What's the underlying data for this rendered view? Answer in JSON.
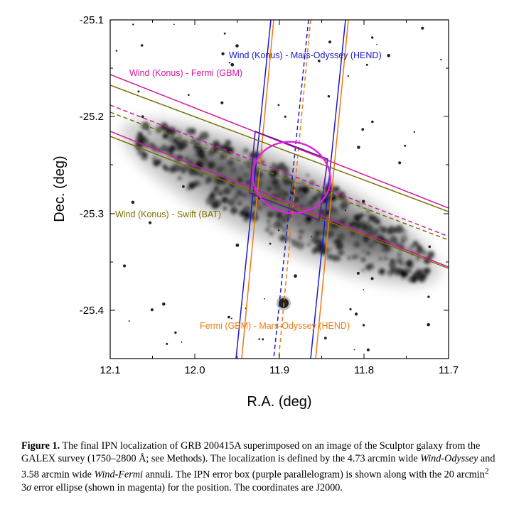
{
  "chart_data": {
    "type": "sky_image_with_annuli",
    "xlabel": "R.A. (deg)",
    "ylabel": "Dec. (deg)",
    "xlim": [
      12.1,
      11.7
    ],
    "ylim": [
      -25.45,
      -25.1
    ],
    "xticks": [
      "12.1",
      "12.0",
      "11.9",
      "11.8",
      "11.7"
    ],
    "yticks": [
      "-25.1",
      "-25.2",
      "-25.3",
      "-25.4"
    ],
    "annotations": [
      {
        "id": "konus-hend",
        "text": "Wind (Konus) - Mars-Odyssey (HEND)",
        "color": "#1a1acc"
      },
      {
        "id": "konus-gbm",
        "text": "Wind (Konus) - Fermi (GBM)",
        "color": "#d4169c"
      },
      {
        "id": "konus-bat",
        "text": "Wind (Konus) - Swift (BAT)",
        "color": "#7a7000"
      },
      {
        "id": "gbm-hend",
        "text": "Fermi (GBM) - Mars-Odyssey (HEND)",
        "color": "#f07a10"
      }
    ]
  },
  "caption": {
    "label": "Figure 1.",
    "seg1": " The final IPN localization of GRB 200415A superimposed on an image of the Sculptor galaxy from the GALEX survey (1750–2800 Å; see Methods). The localization is defined by the 4.73 arcmin wide ",
    "em1": "Wind-Odyssey",
    "seg2": " and 3.58 arcmin wide ",
    "em2": "Wind-Fermi",
    "seg3": " annuli. The IPN error box (purple parallelogram) is shown along with the 20 arcmin",
    "sup": "2",
    "seg4": " 3",
    "sigma": "σ",
    "seg5": " error ellipse (shown in magenta) for the position. The coordinates are J2000."
  }
}
